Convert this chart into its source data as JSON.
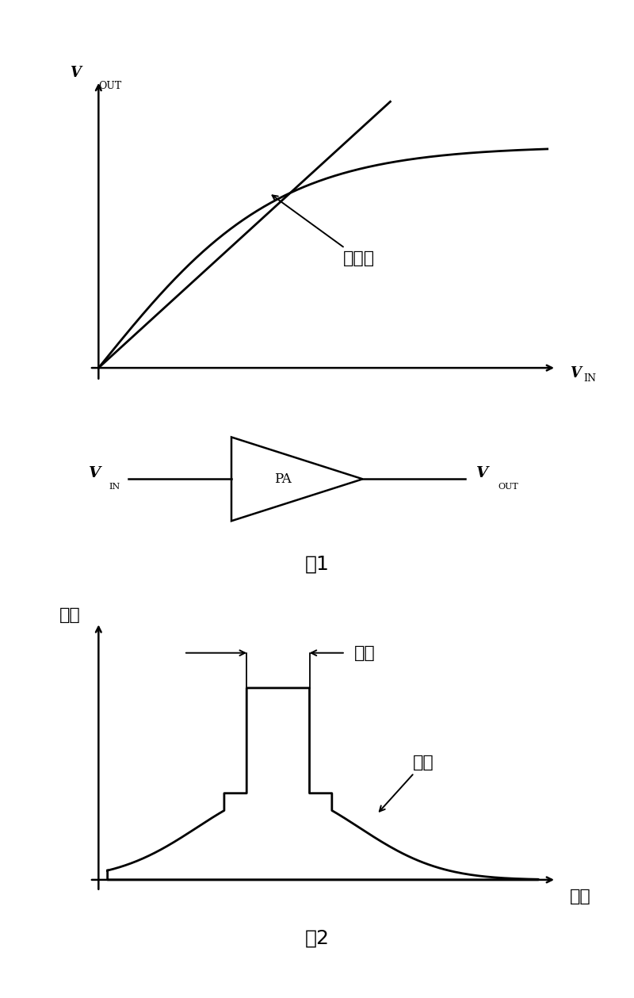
{
  "fig1_title": "图1",
  "fig2_title": "图2",
  "nonlinear_label": "非线性",
  "carrier_label": "载波",
  "intermod_label": "互调",
  "pa_label": "PA",
  "power_label": "功率",
  "freq_label": "频率",
  "bg_color": "#ffffff",
  "line_color": "#000000",
  "line_width": 2.0,
  "axis_lw": 1.8,
  "font_size_chinese": 16,
  "font_size_label": 13,
  "font_size_sub": 9,
  "font_size_caption": 18
}
